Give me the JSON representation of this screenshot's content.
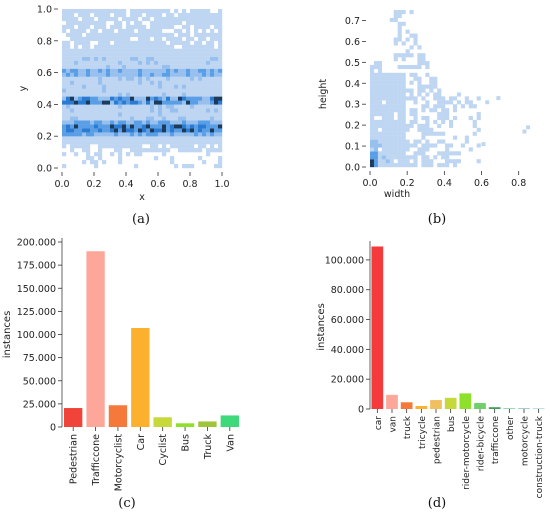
{
  "chart_data": [
    {
      "id": "a",
      "type": "heatmap",
      "caption": "(a)",
      "xlabel": "x",
      "ylabel": "y",
      "xlim": [
        0.0,
        1.0
      ],
      "ylim": [
        0.0,
        1.0
      ],
      "xticks": [
        "0.0",
        "0.2",
        "0.4",
        "0.6",
        "0.8",
        "1.0"
      ],
      "yticks": [
        "0.0",
        "0.2",
        "0.4",
        "0.6",
        "0.8",
        "1.0"
      ],
      "colormap": [
        "#bfd6f2",
        "#98c0ee",
        "#5a9fe6",
        "#2a7bd1",
        "#1c3a5a"
      ],
      "hot_rows": [
        0.25,
        0.43,
        0.6
      ],
      "grid": false
    },
    {
      "id": "b",
      "type": "heatmap",
      "caption": "(b)",
      "xlabel": "width",
      "ylabel": "height",
      "xlim": [
        0.0,
        0.85
      ],
      "ylim": [
        0.0,
        0.75
      ],
      "xticks": [
        "0.0",
        "0.2",
        "0.4",
        "0.6",
        "0.8"
      ],
      "yticks": [
        "0.0",
        "0.1",
        "0.2",
        "0.3",
        "0.4",
        "0.5",
        "0.6",
        "0.7"
      ],
      "colormap": [
        "#bfd6f2",
        "#98c0ee",
        "#5a9fe6",
        "#2a7bd1",
        "#1c3a5a"
      ],
      "grid": false
    },
    {
      "id": "c",
      "type": "bar",
      "caption": "(c)",
      "xlabel": "",
      "ylabel": "instances",
      "ylim": [
        0,
        200000
      ],
      "yticks": [
        0,
        25000,
        50000,
        75000,
        100000,
        125000,
        150000,
        175000,
        200000
      ],
      "ytick_labels": [
        "0",
        "25.000",
        "50.000",
        "75.000",
        "100.000",
        "125.000",
        "150.000",
        "175.000",
        "200.000"
      ],
      "categories": [
        "Pedestrian",
        "Trafficcone",
        "Motorcyclist",
        "Car",
        "Cyclist",
        "Bus",
        "Truck",
        "Van"
      ],
      "values": [
        20500,
        190000,
        23500,
        107000,
        10500,
        4000,
        6000,
        12500
      ],
      "colors": [
        "#f0433a",
        "#fda79a",
        "#f5793a",
        "#fbb12e",
        "#c6d83a",
        "#8ee02a",
        "#a0c43a",
        "#3ed97a"
      ]
    },
    {
      "id": "d",
      "type": "bar",
      "caption": "(d)",
      "xlabel": "",
      "ylabel": "instances",
      "ylim": [
        0,
        110000
      ],
      "yticks": [
        0,
        20000,
        40000,
        60000,
        80000,
        100000
      ],
      "ytick_labels": [
        "0",
        "20.000",
        "40.000",
        "60.000",
        "80.000",
        "100.000"
      ],
      "categories": [
        "car",
        "van",
        "truck",
        "tricycle",
        "pedestrian",
        "bus",
        "rider-motorcycle",
        "rider-bicycle",
        "trafficcone",
        "other",
        "motorcycle",
        "construction-truck"
      ],
      "values": [
        109000,
        9500,
        4500,
        2000,
        6000,
        7500,
        10500,
        4000,
        1200,
        500,
        400,
        300
      ],
      "colors": [
        "#f53a3a",
        "#fda79a",
        "#f5793a",
        "#fbb12e",
        "#f0c060",
        "#c6d83a",
        "#8ee02a",
        "#6fcf6a",
        "#3e9e5a",
        "#6fd0a0",
        "#5fb0b0",
        "#7ab8c8"
      ]
    }
  ]
}
